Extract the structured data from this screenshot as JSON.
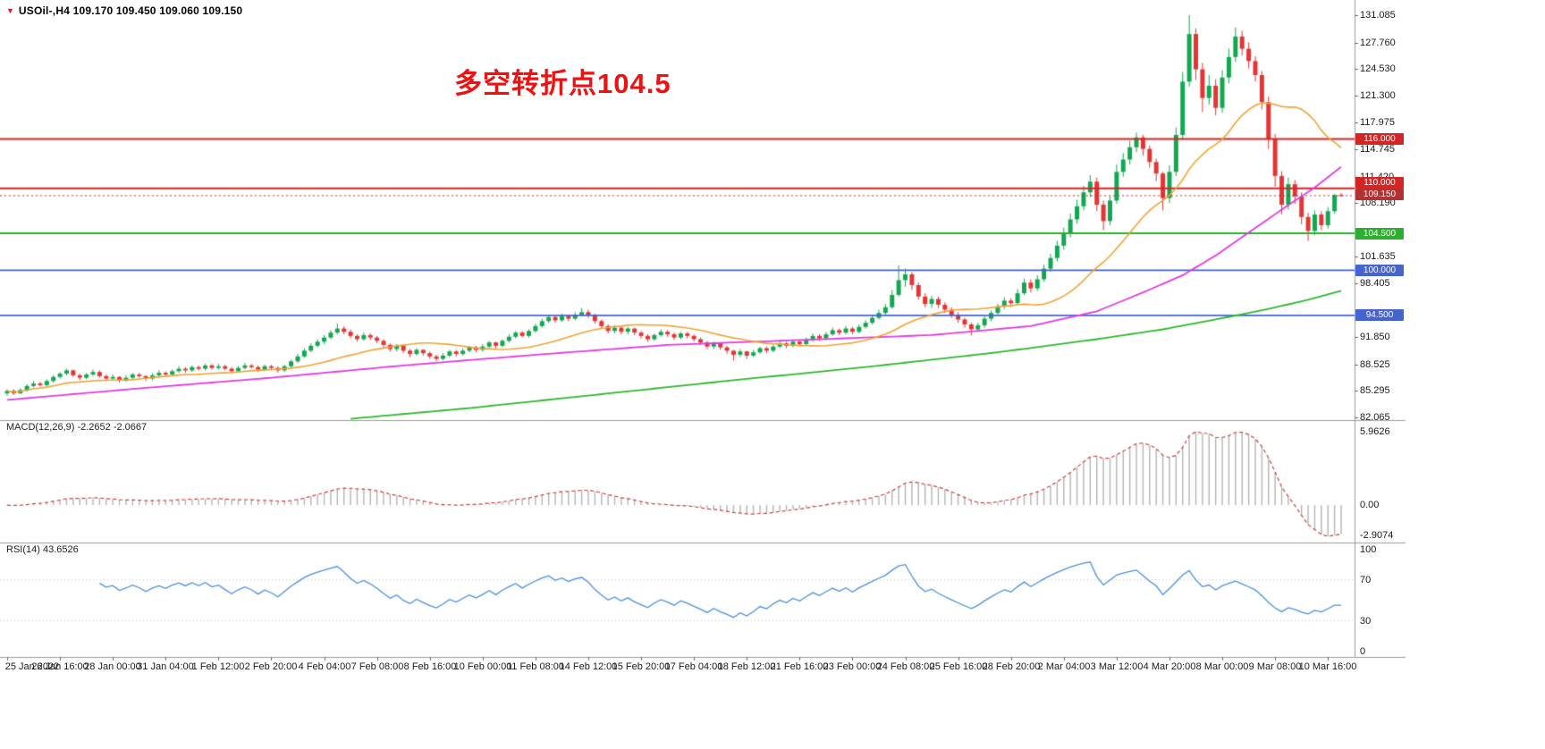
{
  "header": {
    "marker": "▼",
    "title": "USOil-,H4 109.170 109.450 109.060 109.150"
  },
  "annotation": {
    "text": "多空转折点104.5",
    "color": "#ee1111"
  },
  "chart_data": {
    "type": "candlestick",
    "symbol": "USOil-",
    "timeframe": "H4",
    "y_range": [
      81.74,
      132.95
    ],
    "price_axis_labels": [
      "131.085",
      "127.760",
      "124.530",
      "121.300",
      "117.975",
      "114.745",
      "111.420",
      "108.190",
      "104.865",
      "101.635",
      "98.405",
      "95.080",
      "91.850",
      "88.525",
      "85.295",
      "82.065"
    ],
    "x_labels": [
      "25 Jan 2022",
      "26 Jan 16:00",
      "28 Jan 00:00",
      "31 Jan 04:00",
      "1 Feb 12:00",
      "2 Feb 20:00",
      "4 Feb 04:00",
      "7 Feb 08:00",
      "8 Feb 16:00",
      "10 Feb 00:00",
      "11 Feb 08:00",
      "14 Feb 12:00",
      "15 Feb 20:00",
      "17 Feb 04:00",
      "18 Feb 12:00",
      "21 Feb 16:00",
      "23 Feb 00:00",
      "24 Feb 08:00",
      "25 Feb 16:00",
      "28 Feb 20:00",
      "2 Mar 04:00",
      "3 Mar 12:00",
      "4 Mar 20:00",
      "8 Mar 00:00",
      "9 Mar 08:00",
      "10 Mar 16:00"
    ],
    "bars_per_label": 8,
    "candle_colors": {
      "up": "#14a751",
      "down": "#e43535"
    },
    "levels": [
      {
        "value": 116.0,
        "label": "116.000",
        "color": "#d42525",
        "width": 2,
        "dy": 0
      },
      {
        "value": 110.0,
        "label": "110.000",
        "color": "#d42525",
        "width": 2,
        "dy": -6
      },
      {
        "value": 104.5,
        "label": "104.500",
        "color": "#2eae2e",
        "width": 2,
        "dy": 0
      },
      {
        "value": 100.0,
        "label": "100.000",
        "color": "#4664cf",
        "width": 1.6,
        "dy": 0
      },
      {
        "value": 94.5,
        "label": "94.500",
        "color": "#4664cf",
        "width": 1.6,
        "dy": 0
      }
    ],
    "current_price": {
      "value": 109.15,
      "label": "109.150",
      "color": "#b03232",
      "dy": -1
    },
    "moving_averages": [
      {
        "name": "ma-fast",
        "color": "#f2a233",
        "period": 20
      },
      {
        "name": "ma-mid",
        "color": "#e23ae2",
        "points": [
          [
            0,
            84.2
          ],
          [
            20,
            85.6
          ],
          [
            40,
            86.9
          ],
          [
            60,
            88.4
          ],
          [
            80,
            89.7
          ],
          [
            100,
            90.9
          ],
          [
            120,
            91.5
          ],
          [
            140,
            92.1
          ],
          [
            155,
            93.2
          ],
          [
            165,
            95.0
          ],
          [
            172,
            97.3
          ],
          [
            178,
            99.4
          ],
          [
            183,
            101.8
          ],
          [
            188,
            104.6
          ],
          [
            193,
            107.4
          ],
          [
            198,
            110.1
          ],
          [
            202,
            112.6
          ]
        ]
      },
      {
        "name": "ma-slow",
        "color": "#2db82d",
        "points": [
          [
            52,
            81.9
          ],
          [
            70,
            83.2
          ],
          [
            90,
            84.9
          ],
          [
            110,
            86.6
          ],
          [
            130,
            88.2
          ],
          [
            150,
            90.0
          ],
          [
            165,
            91.6
          ],
          [
            175,
            92.8
          ],
          [
            183,
            94.0
          ],
          [
            191,
            95.3
          ],
          [
            197,
            96.4
          ],
          [
            202,
            97.5
          ]
        ]
      }
    ],
    "indicators": [
      {
        "name": "MACD",
        "label": "MACD(12,26,9) -2.2652 -2.0667",
        "params": [
          12,
          26,
          9
        ],
        "values_display": [
          "-2.2652",
          "-2.0667"
        ],
        "axis_labels": [
          "5.9626",
          "0.00",
          "-2.9074"
        ],
        "histogram_color": "#b4b4b4",
        "signal_color": "#cf3d3d"
      },
      {
        "name": "RSI",
        "label": "RSI(14) 43.6526",
        "period": 14,
        "value_display": "43.6526",
        "axis_labels": [
          "100",
          "70",
          "30",
          "0"
        ],
        "line_color": "#4a90d9",
        "levels": [
          70,
          30
        ]
      }
    ],
    "ohlc": [
      [
        85.0,
        85.5,
        84.7,
        85.3
      ],
      [
        85.3,
        85.5,
        84.8,
        85.0
      ],
      [
        85.0,
        85.6,
        84.9,
        85.4
      ],
      [
        85.4,
        86.1,
        85.2,
        85.9
      ],
      [
        85.9,
        86.5,
        85.7,
        86.2
      ],
      [
        86.2,
        86.4,
        85.8,
        86.0
      ],
      [
        86.0,
        86.7,
        85.9,
        86.5
      ],
      [
        86.5,
        87.2,
        86.3,
        87.0
      ],
      [
        87.0,
        87.6,
        86.8,
        87.4
      ],
      [
        87.4,
        88.0,
        87.2,
        87.8
      ],
      [
        87.8,
        87.9,
        87.0,
        87.2
      ],
      [
        87.2,
        87.4,
        86.6,
        86.9
      ],
      [
        86.9,
        87.5,
        86.7,
        87.3
      ],
      [
        87.3,
        87.9,
        87.1,
        87.6
      ],
      [
        87.6,
        87.8,
        86.9,
        87.1
      ],
      [
        87.1,
        87.3,
        86.5,
        86.8
      ],
      [
        86.8,
        87.3,
        86.6,
        87.0
      ],
      [
        87.0,
        87.1,
        86.3,
        86.6
      ],
      [
        86.6,
        87.2,
        86.4,
        86.9
      ],
      [
        86.9,
        87.5,
        86.7,
        87.3
      ],
      [
        87.3,
        87.5,
        86.9,
        87.1
      ],
      [
        87.1,
        87.2,
        86.5,
        86.8
      ],
      [
        86.8,
        87.4,
        86.6,
        87.2
      ],
      [
        87.2,
        87.8,
        87.0,
        87.5
      ],
      [
        87.5,
        87.7,
        87.1,
        87.3
      ],
      [
        87.3,
        87.9,
        87.1,
        87.7
      ],
      [
        87.7,
        88.3,
        87.5,
        88.0
      ],
      [
        88.0,
        88.2,
        87.5,
        87.8
      ],
      [
        87.8,
        88.4,
        87.6,
        88.2
      ],
      [
        88.2,
        88.4,
        87.8,
        88.0
      ],
      [
        88.0,
        88.6,
        87.8,
        88.4
      ],
      [
        88.4,
        88.6,
        87.9,
        88.1
      ],
      [
        88.1,
        88.6,
        87.9,
        88.3
      ],
      [
        88.3,
        88.5,
        87.8,
        88.0
      ],
      [
        88.0,
        88.2,
        87.4,
        87.7
      ],
      [
        87.7,
        88.3,
        87.5,
        88.1
      ],
      [
        88.1,
        88.7,
        87.9,
        88.4
      ],
      [
        88.4,
        88.6,
        88.0,
        88.2
      ],
      [
        88.2,
        88.4,
        87.6,
        87.9
      ],
      [
        87.9,
        88.5,
        87.7,
        88.3
      ],
      [
        88.3,
        88.5,
        87.8,
        88.1
      ],
      [
        88.1,
        88.3,
        87.5,
        87.8
      ],
      [
        87.8,
        88.5,
        87.6,
        88.3
      ],
      [
        88.3,
        89.1,
        88.1,
        88.9
      ],
      [
        88.9,
        89.8,
        88.7,
        89.5
      ],
      [
        89.5,
        90.5,
        89.3,
        90.2
      ],
      [
        90.2,
        91.1,
        90.0,
        90.8
      ],
      [
        90.8,
        91.6,
        90.6,
        91.3
      ],
      [
        91.3,
        92.1,
        91.0,
        91.8
      ],
      [
        91.8,
        92.7,
        91.6,
        92.4
      ],
      [
        92.4,
        93.5,
        92.2,
        92.9
      ],
      [
        92.9,
        93.2,
        92.2,
        92.5
      ],
      [
        92.5,
        92.8,
        91.7,
        92.0
      ],
      [
        92.0,
        92.2,
        91.3,
        91.6
      ],
      [
        91.6,
        92.4,
        91.4,
        92.1
      ],
      [
        92.1,
        92.3,
        91.5,
        91.8
      ],
      [
        91.8,
        92.0,
        91.1,
        91.4
      ],
      [
        91.4,
        91.6,
        90.6,
        90.9
      ],
      [
        90.9,
        91.1,
        90.1,
        90.4
      ],
      [
        90.4,
        91.0,
        90.1,
        90.8
      ],
      [
        90.8,
        90.9,
        89.9,
        90.2
      ],
      [
        90.2,
        90.4,
        89.4,
        89.8
      ],
      [
        89.8,
        90.5,
        89.6,
        90.3
      ],
      [
        90.3,
        90.4,
        89.6,
        89.9
      ],
      [
        89.9,
        90.1,
        89.2,
        89.5
      ],
      [
        89.5,
        89.7,
        88.9,
        89.2
      ],
      [
        89.2,
        89.9,
        89.0,
        89.6
      ],
      [
        89.6,
        90.3,
        89.4,
        90.1
      ],
      [
        90.1,
        90.3,
        89.5,
        89.8
      ],
      [
        89.8,
        90.5,
        89.6,
        90.2
      ],
      [
        90.2,
        90.8,
        90.0,
        90.6
      ],
      [
        90.6,
        90.8,
        90.0,
        90.3
      ],
      [
        90.3,
        91.0,
        90.1,
        90.7
      ],
      [
        90.7,
        91.4,
        90.5,
        91.2
      ],
      [
        91.2,
        91.3,
        90.5,
        90.8
      ],
      [
        90.8,
        91.6,
        90.6,
        91.4
      ],
      [
        91.4,
        92.2,
        91.2,
        91.9
      ],
      [
        91.9,
        92.6,
        91.7,
        92.4
      ],
      [
        92.4,
        92.6,
        91.8,
        92.0
      ],
      [
        92.0,
        92.8,
        91.8,
        92.6
      ],
      [
        92.6,
        93.5,
        92.4,
        93.2
      ],
      [
        93.2,
        94.1,
        93.0,
        93.8
      ],
      [
        93.8,
        94.6,
        93.6,
        94.3
      ],
      [
        94.3,
        94.5,
        93.6,
        93.9
      ],
      [
        93.9,
        94.7,
        93.7,
        94.4
      ],
      [
        94.4,
        94.6,
        93.8,
        94.1
      ],
      [
        94.1,
        94.9,
        93.9,
        94.6
      ],
      [
        94.6,
        95.4,
        94.4,
        94.9
      ],
      [
        94.9,
        95.2,
        94.2,
        94.5
      ],
      [
        94.5,
        94.7,
        93.5,
        93.8
      ],
      [
        93.8,
        94.0,
        92.9,
        93.2
      ],
      [
        93.2,
        93.4,
        92.3,
        92.6
      ],
      [
        92.6,
        93.3,
        92.3,
        93.0
      ],
      [
        93.0,
        93.2,
        92.2,
        92.5
      ],
      [
        92.5,
        93.1,
        92.2,
        92.9
      ],
      [
        92.9,
        93.0,
        92.1,
        92.4
      ],
      [
        92.4,
        92.6,
        91.7,
        92.0
      ],
      [
        92.0,
        92.2,
        91.3,
        91.6
      ],
      [
        91.6,
        92.3,
        91.4,
        92.1
      ],
      [
        92.1,
        92.8,
        91.9,
        92.5
      ],
      [
        92.5,
        92.7,
        91.9,
        92.2
      ],
      [
        92.2,
        92.4,
        91.5,
        91.8
      ],
      [
        91.8,
        92.5,
        91.6,
        92.3
      ],
      [
        92.3,
        92.5,
        91.7,
        92.0
      ],
      [
        92.0,
        92.2,
        91.3,
        91.6
      ],
      [
        91.6,
        91.8,
        90.9,
        91.2
      ],
      [
        91.2,
        91.4,
        90.4,
        90.7
      ],
      [
        90.7,
        91.3,
        90.4,
        91.1
      ],
      [
        91.1,
        91.2,
        90.3,
        90.6
      ],
      [
        90.6,
        90.8,
        89.8,
        90.2
      ],
      [
        90.2,
        90.3,
        89.0,
        89.7
      ],
      [
        89.7,
        90.4,
        89.4,
        90.1
      ],
      [
        90.1,
        90.2,
        89.2,
        89.6
      ],
      [
        89.6,
        90.3,
        89.4,
        90.0
      ],
      [
        90.0,
        90.7,
        89.8,
        90.5
      ],
      [
        90.5,
        90.7,
        89.9,
        90.2
      ],
      [
        90.2,
        90.9,
        90.0,
        90.7
      ],
      [
        90.7,
        91.4,
        90.5,
        91.1
      ],
      [
        91.1,
        91.3,
        90.5,
        90.8
      ],
      [
        90.8,
        91.5,
        90.6,
        91.3
      ],
      [
        91.3,
        91.5,
        90.7,
        91.0
      ],
      [
        91.0,
        91.8,
        90.8,
        91.5
      ],
      [
        91.5,
        92.3,
        91.3,
        92.0
      ],
      [
        92.0,
        92.2,
        91.4,
        91.7
      ],
      [
        91.7,
        92.5,
        91.5,
        92.2
      ],
      [
        92.2,
        93.0,
        92.0,
        92.7
      ],
      [
        92.7,
        92.9,
        92.1,
        92.4
      ],
      [
        92.4,
        93.2,
        92.2,
        92.9
      ],
      [
        92.9,
        93.1,
        92.2,
        92.5
      ],
      [
        92.5,
        93.4,
        92.3,
        93.1
      ],
      [
        93.1,
        93.9,
        92.9,
        93.6
      ],
      [
        93.6,
        94.5,
        93.4,
        94.2
      ],
      [
        94.2,
        95.2,
        94.0,
        94.8
      ],
      [
        94.8,
        95.9,
        94.6,
        95.5
      ],
      [
        95.5,
        97.6,
        95.3,
        97.0
      ],
      [
        97.0,
        100.6,
        96.8,
        98.8
      ],
      [
        98.8,
        100.2,
        98.0,
        99.5
      ],
      [
        99.5,
        99.8,
        97.6,
        98.2
      ],
      [
        98.2,
        98.5,
        96.4,
        96.8
      ],
      [
        96.8,
        97.2,
        95.5,
        95.9
      ],
      [
        95.9,
        96.9,
        95.4,
        96.5
      ],
      [
        96.5,
        96.8,
        95.4,
        95.8
      ],
      [
        95.8,
        96.1,
        94.8,
        95.2
      ],
      [
        95.2,
        95.5,
        94.2,
        94.6
      ],
      [
        94.6,
        94.9,
        93.6,
        94.0
      ],
      [
        94.0,
        94.2,
        93.0,
        93.4
      ],
      [
        93.4,
        93.6,
        92.1,
        92.8
      ],
      [
        92.8,
        93.6,
        92.5,
        93.3
      ],
      [
        93.3,
        94.4,
        93.0,
        94.1
      ],
      [
        94.1,
        95.1,
        93.8,
        94.8
      ],
      [
        94.8,
        95.9,
        94.5,
        95.6
      ],
      [
        95.6,
        96.7,
        95.3,
        96.3
      ],
      [
        96.3,
        96.6,
        95.5,
        96.0
      ],
      [
        96.0,
        97.7,
        95.8,
        97.2
      ],
      [
        97.2,
        99.0,
        97.0,
        98.5
      ],
      [
        98.5,
        98.9,
        97.3,
        97.8
      ],
      [
        97.8,
        99.4,
        97.5,
        98.9
      ],
      [
        98.9,
        100.7,
        98.6,
        100.2
      ],
      [
        100.2,
        102.0,
        99.8,
        101.5
      ],
      [
        101.5,
        103.6,
        101.1,
        103.0
      ],
      [
        103.0,
        105.2,
        102.5,
        104.5
      ],
      [
        104.5,
        106.9,
        104.0,
        106.2
      ],
      [
        106.2,
        108.6,
        105.7,
        107.8
      ],
      [
        107.8,
        110.3,
        107.3,
        109.5
      ],
      [
        109.5,
        111.6,
        108.9,
        110.8
      ],
      [
        110.8,
        111.3,
        107.2,
        108.0
      ],
      [
        108.0,
        108.5,
        104.9,
        106.0
      ],
      [
        106.0,
        109.0,
        105.5,
        108.5
      ],
      [
        108.5,
        112.9,
        108.1,
        112.0
      ],
      [
        112.0,
        114.3,
        111.4,
        113.5
      ],
      [
        113.5,
        115.8,
        112.9,
        115.0
      ],
      [
        115.0,
        116.8,
        114.4,
        116.2
      ],
      [
        116.2,
        116.5,
        114.0,
        114.8
      ],
      [
        114.8,
        115.2,
        112.5,
        113.2
      ],
      [
        113.2,
        113.6,
        110.9,
        111.8
      ],
      [
        111.8,
        112.0,
        107.3,
        108.8
      ],
      [
        108.8,
        112.8,
        108.2,
        112.0
      ],
      [
        112.0,
        117.4,
        111.5,
        116.5
      ],
      [
        116.5,
        124.2,
        115.9,
        123.0
      ],
      [
        123.0,
        131.1,
        122.4,
        128.8
      ],
      [
        128.8,
        129.5,
        123.2,
        124.5
      ],
      [
        124.5,
        125.3,
        119.3,
        121.0
      ],
      [
        121.0,
        123.8,
        120.2,
        122.5
      ],
      [
        122.5,
        123.3,
        118.9,
        119.8
      ],
      [
        119.8,
        124.4,
        119.2,
        123.5
      ],
      [
        123.5,
        127.0,
        122.8,
        126.0
      ],
      [
        126.0,
        129.6,
        125.4,
        128.5
      ],
      [
        128.5,
        129.2,
        126.2,
        127.0
      ],
      [
        127.0,
        127.8,
        124.6,
        125.5
      ],
      [
        125.5,
        126.1,
        123.0,
        123.8
      ],
      [
        123.8,
        124.3,
        119.6,
        120.5
      ],
      [
        120.5,
        121.2,
        114.8,
        116.0
      ],
      [
        116.0,
        116.6,
        110.2,
        111.5
      ],
      [
        111.5,
        112.1,
        106.8,
        108.0
      ],
      [
        108.0,
        111.3,
        107.4,
        110.5
      ],
      [
        110.5,
        111.0,
        108.1,
        109.0
      ],
      [
        109.0,
        109.5,
        105.6,
        106.5
      ],
      [
        106.5,
        107.0,
        103.6,
        104.8
      ],
      [
        104.8,
        107.3,
        104.3,
        106.8
      ],
      [
        106.8,
        107.2,
        104.9,
        105.5
      ],
      [
        105.5,
        107.7,
        105.1,
        107.2
      ],
      [
        107.2,
        109.3,
        106.9,
        109.17
      ],
      [
        109.17,
        109.45,
        109.06,
        109.15
      ]
    ]
  }
}
